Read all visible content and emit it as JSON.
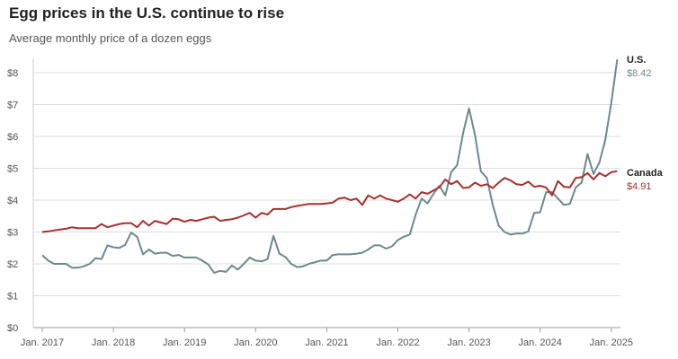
{
  "header": {
    "title": "Egg prices in the U.S. continue to rise",
    "subtitle": "Average monthly price of a dozen eggs"
  },
  "chart_data": {
    "type": "line",
    "title": "Egg prices in the U.S. continue to rise",
    "subtitle": "Average monthly price of a dozen eggs",
    "xlabel": "",
    "ylabel": "",
    "ylim": [
      0,
      8.5
    ],
    "yticks": [
      {
        "value": 0,
        "label": "$0"
      },
      {
        "value": 1,
        "label": "$1"
      },
      {
        "value": 2,
        "label": "$2"
      },
      {
        "value": 3,
        "label": "$3"
      },
      {
        "value": 4,
        "label": "$4"
      },
      {
        "value": 5,
        "label": "$5"
      },
      {
        "value": 6,
        "label": "$6"
      },
      {
        "value": 7,
        "label": "$7"
      },
      {
        "value": 8,
        "label": "$8"
      }
    ],
    "xticks": [
      "Jan. 2017",
      "Jan. 2018",
      "Jan. 2019",
      "Jan. 2020",
      "Jan. 2021",
      "Jan. 2022",
      "Jan. 2023",
      "Jan. 2024",
      "Jan. 2025"
    ],
    "grid": true,
    "series": [
      {
        "name": "U.S.",
        "end_label": "$8.42",
        "color": "#6a8a8e",
        "start": "Jan. 2017",
        "frequency": "monthly",
        "values": [
          2.27,
          2.1,
          2.0,
          2.0,
          2.0,
          1.88,
          1.88,
          1.92,
          2.0,
          2.18,
          2.15,
          2.58,
          2.52,
          2.5,
          2.6,
          2.98,
          2.85,
          2.3,
          2.45,
          2.32,
          2.35,
          2.35,
          2.25,
          2.28,
          2.2,
          2.2,
          2.2,
          2.1,
          1.98,
          1.72,
          1.78,
          1.75,
          1.95,
          1.82,
          2.0,
          2.2,
          2.1,
          2.08,
          2.15,
          2.88,
          2.32,
          2.22,
          2.0,
          1.9,
          1.92,
          2.0,
          2.05,
          2.1,
          2.1,
          2.28,
          2.3,
          2.3,
          2.3,
          2.32,
          2.35,
          2.45,
          2.58,
          2.58,
          2.48,
          2.55,
          2.75,
          2.85,
          2.92,
          3.55,
          4.05,
          3.9,
          4.2,
          4.45,
          4.15,
          4.88,
          5.1,
          6.1,
          6.88,
          6.05,
          4.9,
          4.7,
          3.85,
          3.2,
          3.0,
          2.92,
          2.95,
          2.95,
          3.02,
          3.6,
          3.62,
          4.25,
          4.25,
          4.05,
          3.85,
          3.88,
          4.4,
          4.55,
          5.45,
          4.82,
          5.18,
          5.9,
          7.05,
          8.42
        ]
      },
      {
        "name": "Canada",
        "end_label": "$4.91",
        "color": "#a8302e",
        "start": "Jan. 2017",
        "frequency": "monthly",
        "values": [
          3.0,
          3.02,
          3.05,
          3.08,
          3.1,
          3.15,
          3.12,
          3.12,
          3.12,
          3.12,
          3.25,
          3.15,
          3.2,
          3.25,
          3.28,
          3.28,
          3.15,
          3.35,
          3.2,
          3.35,
          3.3,
          3.25,
          3.42,
          3.4,
          3.32,
          3.38,
          3.35,
          3.4,
          3.45,
          3.48,
          3.35,
          3.38,
          3.4,
          3.45,
          3.52,
          3.6,
          3.45,
          3.6,
          3.55,
          3.72,
          3.72,
          3.72,
          3.78,
          3.82,
          3.85,
          3.88,
          3.88,
          3.88,
          3.9,
          3.92,
          4.05,
          4.08,
          4.0,
          4.05,
          3.85,
          4.15,
          4.05,
          4.15,
          4.05,
          4.0,
          3.95,
          4.05,
          4.18,
          4.05,
          4.25,
          4.2,
          4.3,
          4.4,
          4.65,
          4.5,
          4.6,
          4.38,
          4.4,
          4.55,
          4.45,
          4.5,
          4.38,
          4.55,
          4.7,
          4.62,
          4.5,
          4.48,
          4.58,
          4.42,
          4.45,
          4.4,
          4.15,
          4.6,
          4.42,
          4.4,
          4.7,
          4.72,
          4.85,
          4.65,
          4.85,
          4.75,
          4.88,
          4.91
        ]
      }
    ]
  }
}
